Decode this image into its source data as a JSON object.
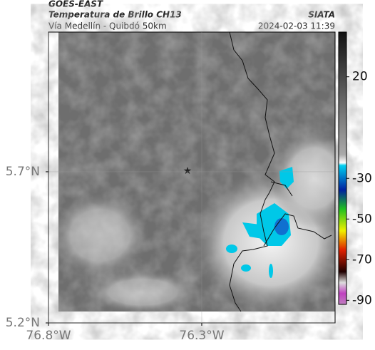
{
  "header": {
    "satellite": "GOES-EAST",
    "product": "Temperatura de Brillo CH13",
    "region": "Vía Medellín - Quibdó 50km",
    "source": "SIATA",
    "datetime": "2024-02-03 11:39"
  },
  "map": {
    "xlim": [
      -76.8,
      -75.865
    ],
    "ylim": [
      5.2,
      6.162
    ],
    "xticks": [
      {
        "value": -76.8,
        "label": "76.8°W"
      },
      {
        "value": -76.3,
        "label": "76.3°W"
      }
    ],
    "yticks": [
      {
        "value": 5.7,
        "label": "5.7°N"
      },
      {
        "value": 5.2,
        "label": "5.2°N"
      }
    ],
    "grid": true
  },
  "colorbar": {
    "lim": [
      -92,
      42
    ],
    "ticks": [
      20,
      -30,
      -50,
      -70,
      -90
    ]
  }
}
